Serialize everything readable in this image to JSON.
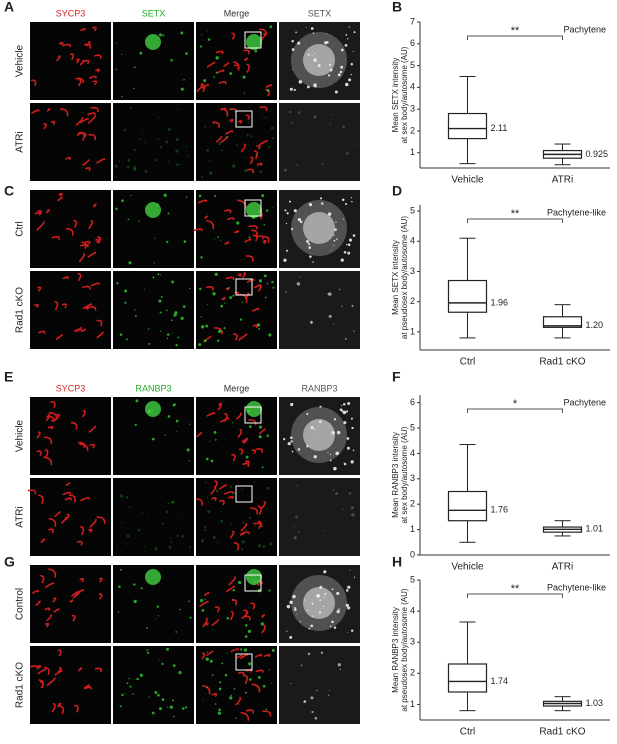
{
  "panels": {
    "letters": [
      "A",
      "B",
      "C",
      "D",
      "E",
      "F",
      "G",
      "H"
    ]
  },
  "image_panels": [
    {
      "columns": [
        "SYCP3",
        "SETX",
        "Merge",
        "SETX"
      ],
      "rows": [
        "Vehicle",
        "ATRi"
      ]
    },
    {
      "rows": [
        "Ctrl",
        "Rad1 cKO"
      ]
    },
    {
      "columns": [
        "SYCP3",
        "RANBP3",
        "Merge",
        "RANBP3"
      ],
      "rows": [
        "Vehicle",
        "ATRi"
      ]
    },
    {
      "rows": [
        "Control",
        "Rad1 cKO"
      ]
    }
  ],
  "chart_data": [
    {
      "type": "box",
      "annotation": "Pachytene",
      "y_label": [
        "Mean SETX intensity",
        "at sex body/autosome (AU)"
      ],
      "categories": [
        "Vehicle",
        "ATRi"
      ],
      "significance": "**",
      "whisker_low": [
        0.5,
        0.45
      ],
      "q1": [
        1.65,
        0.75
      ],
      "median": [
        2.11,
        0.925
      ],
      "q3": [
        2.8,
        1.1
      ],
      "whisker_high": [
        4.5,
        1.4
      ],
      "value_labels": [
        "2.11",
        "0.925"
      ],
      "color": "#999999",
      "ylim": [
        0.3,
        7
      ],
      "yticks": [
        1,
        2,
        3,
        4,
        5,
        6,
        7
      ]
    },
    {
      "type": "box",
      "annotation": "Pachytene-like",
      "y_label": [
        "Mean SETX intensity",
        "at pseudosex body/autosome (AU)"
      ],
      "categories": [
        "Ctrl",
        "Rad1 cKO"
      ],
      "significance": "**",
      "whisker_low": [
        0.8,
        0.8
      ],
      "q1": [
        1.65,
        1.15
      ],
      "median": [
        1.96,
        1.2
      ],
      "q3": [
        2.7,
        1.5
      ],
      "whisker_high": [
        4.1,
        1.9
      ],
      "value_labels": [
        "1.96",
        "1.20"
      ],
      "color": "#999999",
      "ylim": [
        0.4,
        5.2
      ],
      "yticks": [
        1,
        2,
        3,
        4,
        5
      ]
    },
    {
      "type": "box",
      "annotation": "Pachytene",
      "y_label": [
        "Mean RANBP3 intensity",
        "at sex body/autosome (AU)"
      ],
      "categories": [
        "Vehicle",
        "ATRi"
      ],
      "significance": "*",
      "whisker_low": [
        0.5,
        0.75
      ],
      "q1": [
        1.35,
        0.9
      ],
      "median": [
        1.76,
        1.01
      ],
      "q3": [
        2.5,
        1.1
      ],
      "whisker_high": [
        4.35,
        1.35
      ],
      "value_labels": [
        "1.76",
        "1.01"
      ],
      "color": "#999999",
      "ylim": [
        0,
        6.3
      ],
      "yticks": [
        0,
        1,
        2,
        3,
        4,
        5,
        6
      ]
    },
    {
      "type": "box",
      "annotation": "Pachytene-like",
      "y_label": [
        "Mean RANBP3 intensity",
        "at pseudosex body/autosome (AU)"
      ],
      "categories": [
        "Ctrl",
        "Rad1 cKO"
      ],
      "significance": "**",
      "whisker_low": [
        0.8,
        0.8
      ],
      "q1": [
        1.4,
        0.95
      ],
      "median": [
        1.74,
        1.03
      ],
      "q3": [
        2.3,
        1.1
      ],
      "whisker_high": [
        3.65,
        1.25
      ],
      "value_labels": [
        "1.74",
        "1.03"
      ],
      "color": "#999999",
      "ylim": [
        0.5,
        5
      ],
      "yticks": [
        1,
        2,
        3,
        4,
        5
      ]
    }
  ]
}
